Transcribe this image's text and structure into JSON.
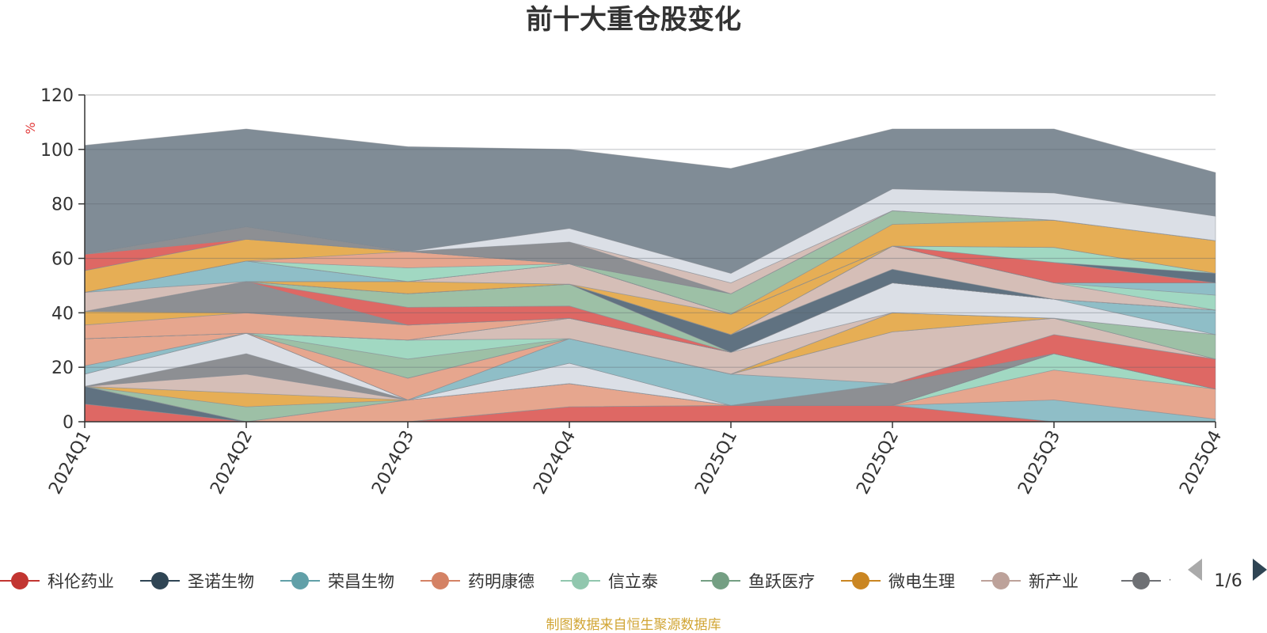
{
  "chart_data": {
    "type": "area",
    "title": "前十大重仓股变化",
    "unit": "%",
    "ylim": [
      0,
      120
    ],
    "yticks": [
      "0",
      "20",
      "40",
      "60",
      "80",
      "100",
      "120"
    ],
    "categories": [
      "2024Q1",
      "2024Q2",
      "2024Q3",
      "2024Q4",
      "2025Q1",
      "2025Q2",
      "2025Q3",
      "2025Q4"
    ],
    "grid": true,
    "series": [
      {
        "name": "",
        "color": "#d9534f",
        "values": [
          6.5,
          0,
          0,
          5.5,
          6,
          6,
          0,
          0
        ]
      },
      {
        "name": "",
        "color": "#4a5f70",
        "values": [
          6.5,
          0,
          0,
          0,
          0,
          0,
          0,
          0
        ]
      },
      {
        "name": "",
        "color": "#7fb5bf",
        "values": [
          0,
          0,
          0,
          0,
          0,
          0,
          8,
          1
        ]
      },
      {
        "name": "",
        "color": "#e39a7e",
        "values": [
          0,
          0,
          8,
          8.5,
          0,
          0,
          11,
          11
        ]
      },
      {
        "name": "",
        "color": "#94d3b9",
        "values": [
          0,
          0,
          0,
          0,
          0,
          0,
          6,
          0
        ]
      },
      {
        "name": "",
        "color": "#8fb79a",
        "values": [
          0,
          5.5,
          0,
          0,
          0,
          0,
          0,
          0
        ]
      },
      {
        "name": "",
        "color": "#e3a33d",
        "values": [
          0,
          5,
          0,
          0,
          0,
          0,
          0,
          0
        ]
      },
      {
        "name": "",
        "color": "#cfb5ad",
        "values": [
          0,
          7,
          0,
          0,
          0,
          0,
          0,
          0
        ]
      },
      {
        "name": "",
        "color": "#7d7f84",
        "values": [
          0,
          7.5,
          0,
          0,
          0,
          8,
          0,
          0
        ]
      },
      {
        "name": "",
        "color": "#d6dbe2",
        "values": [
          4.5,
          7.5,
          0,
          7.5,
          0,
          0,
          0,
          0
        ]
      },
      {
        "name": "",
        "color": "#d9534f",
        "values": [
          0,
          0,
          0,
          0,
          0,
          0,
          7,
          11
        ]
      },
      {
        "name": "",
        "color": "#7fb5bf",
        "values": [
          3,
          0,
          0,
          9,
          11.5,
          0,
          0,
          0
        ]
      },
      {
        "name": "",
        "color": "#cfb5ad",
        "values": [
          0,
          0,
          0,
          0,
          0,
          19,
          6,
          0
        ]
      },
      {
        "name": "",
        "color": "#e39a7e",
        "values": [
          10,
          0,
          8,
          0,
          0,
          0,
          0,
          0
        ]
      },
      {
        "name": "",
        "color": "#e3a33d",
        "values": [
          0,
          0,
          0,
          0,
          0,
          7,
          0,
          0
        ]
      },
      {
        "name": "",
        "color": "#8fb79a",
        "values": [
          0,
          0,
          7,
          0,
          0,
          0,
          0,
          9
        ]
      },
      {
        "name": "",
        "color": "#94d3b9",
        "values": [
          0,
          0,
          7,
          0,
          0,
          0,
          0,
          0
        ]
      },
      {
        "name": "",
        "color": "#cfb5ad",
        "values": [
          0,
          0,
          0,
          7.5,
          8,
          0,
          0,
          0
        ]
      },
      {
        "name": "",
        "color": "#d6dbe2",
        "values": [
          0,
          0,
          0,
          0,
          0,
          11,
          7,
          0
        ]
      },
      {
        "name": "",
        "color": "#7fb5bf",
        "values": [
          0,
          0,
          0,
          0,
          0,
          0,
          0,
          9
        ]
      },
      {
        "name": "",
        "color": "#e39a7e",
        "values": [
          5,
          7.5,
          5.5,
          0,
          0,
          0,
          0,
          0
        ]
      },
      {
        "name": "",
        "color": "#e3a33d",
        "values": [
          5,
          0,
          0,
          0,
          0,
          0,
          0,
          0
        ]
      },
      {
        "name": "",
        "color": "#7d7f84",
        "values": [
          0,
          11.5,
          0,
          0,
          0,
          0,
          0,
          0
        ]
      },
      {
        "name": "",
        "color": "#d9534f",
        "values": [
          0,
          0,
          6.5,
          4.5,
          0,
          0,
          0,
          0
        ]
      },
      {
        "name": "",
        "color": "#8fb79a",
        "values": [
          0,
          0,
          5,
          8,
          0,
          0,
          0,
          0
        ]
      },
      {
        "name": "",
        "color": "#4a5f70",
        "values": [
          0,
          0,
          0,
          0,
          6.5,
          5,
          0,
          0
        ]
      },
      {
        "name": "",
        "color": "#cfb5ad",
        "values": [
          0,
          0,
          0,
          0,
          0,
          8.5,
          6,
          0
        ]
      },
      {
        "name": "",
        "color": "#94d3b9",
        "values": [
          0,
          0,
          0,
          0,
          0,
          0,
          0,
          5.5
        ]
      },
      {
        "name": "",
        "color": "#7fb5bf",
        "values": [
          0,
          0,
          0,
          0,
          0,
          0,
          0,
          4.5
        ]
      },
      {
        "name": "",
        "color": "#e3a33d",
        "values": [
          0,
          0,
          4.5,
          0,
          7.5,
          0,
          0,
          0
        ]
      },
      {
        "name": "",
        "color": "#cfb5ad",
        "values": [
          7,
          0,
          0,
          7.5,
          0,
          0,
          0,
          0
        ]
      },
      {
        "name": "",
        "color": "#7fb5bf",
        "values": [
          0,
          7.5,
          0,
          0,
          0,
          0,
          0,
          0
        ]
      },
      {
        "name": "",
        "color": "#d9534f",
        "values": [
          0,
          0,
          0,
          0,
          0,
          0,
          7.5,
          0
        ]
      },
      {
        "name": "",
        "color": "#4a5f70",
        "values": [
          0,
          0,
          0,
          0,
          0,
          0,
          0,
          3.5
        ]
      },
      {
        "name": "",
        "color": "#94d3b9",
        "values": [
          0,
          0,
          5,
          0,
          0,
          0,
          5.5,
          0
        ]
      },
      {
        "name": "",
        "color": "#e39a7e",
        "values": [
          0,
          0,
          6,
          0,
          0,
          0,
          0,
          0
        ]
      },
      {
        "name": "",
        "color": "#e3a33d",
        "values": [
          8,
          8,
          0,
          0,
          0,
          8,
          10,
          12
        ]
      },
      {
        "name": "",
        "color": "#8fb79a",
        "values": [
          0,
          0,
          0,
          0,
          7.5,
          5,
          0,
          0
        ]
      },
      {
        "name": "",
        "color": "#d9534f",
        "values": [
          6,
          0,
          0,
          0,
          0,
          0,
          0,
          0
        ]
      },
      {
        "name": "",
        "color": "#7d7f84",
        "values": [
          0,
          4.5,
          0,
          8,
          0,
          0,
          0,
          0
        ]
      },
      {
        "name": "",
        "color": "#cfb5ad",
        "values": [
          0,
          0,
          0,
          0,
          4,
          0,
          0,
          0
        ]
      },
      {
        "name": "",
        "color": "#d6dbe2",
        "values": [
          0,
          0,
          0,
          5,
          3.5,
          8,
          10,
          9
        ]
      },
      {
        "name": "",
        "color": "#6e7c88",
        "values": [
          40,
          36,
          38.5,
          29,
          38.5,
          22,
          23.5,
          16
        ]
      }
    ],
    "legend": {
      "position": "bottom",
      "items": [
        {
          "name": "科伦药业",
          "color": "#c23531"
        },
        {
          "name": "圣诺生物",
          "color": "#2f4554"
        },
        {
          "name": "荣昌生物",
          "color": "#61a0a8"
        },
        {
          "name": "药明康德",
          "color": "#d48265"
        },
        {
          "name": "信立泰",
          "color": "#91c7ae"
        },
        {
          "name": "鱼跃医疗",
          "color": "#749f83"
        },
        {
          "name": "微电生理",
          "color": "#ca8622"
        },
        {
          "name": "新产业",
          "color": "#bda29a"
        },
        {
          "name": "云南白药",
          "color": "#6e7074"
        }
      ],
      "page": "1/6"
    }
  },
  "footer": "制图数据来自恒生聚源数据库"
}
